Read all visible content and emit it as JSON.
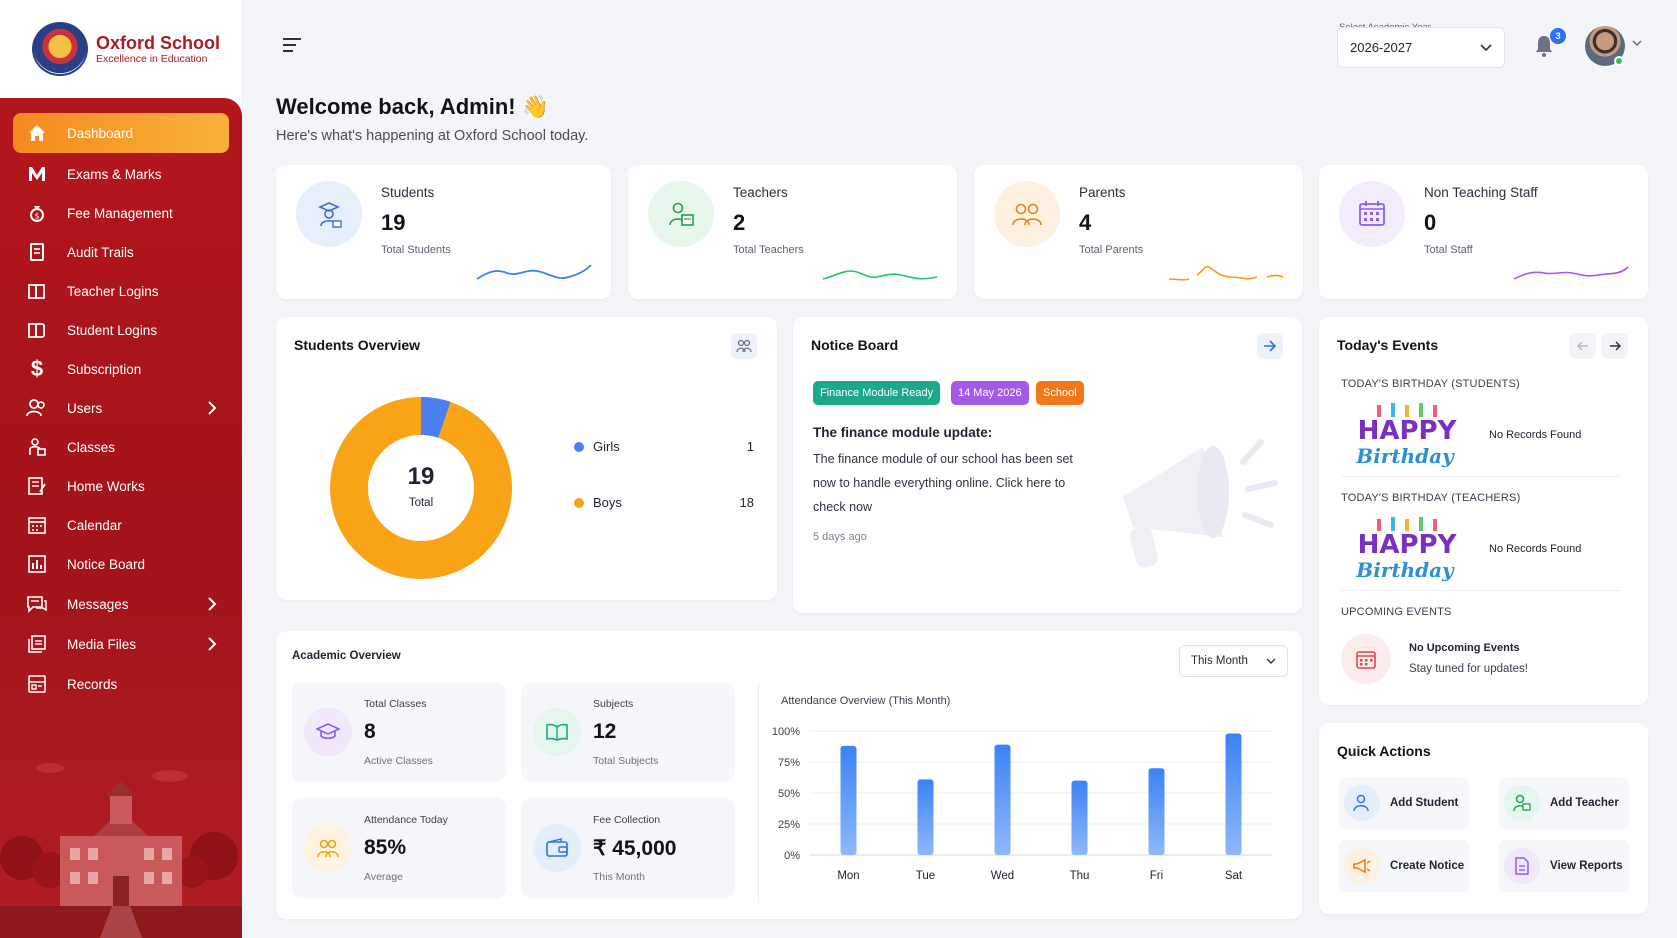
{
  "brand": {
    "name": "Oxford School",
    "tagline": "Excellence in Education"
  },
  "nav": {
    "items": [
      {
        "label": "Dashboard",
        "icon": "home-icon",
        "active": true
      },
      {
        "label": "Exams & Marks",
        "icon": "m-icon"
      },
      {
        "label": "Fee Management",
        "icon": "money-bag-icon"
      },
      {
        "label": "Audit Trails",
        "icon": "document-icon"
      },
      {
        "label": "Teacher Logins",
        "icon": "book-icon"
      },
      {
        "label": "Student Logins",
        "icon": "book-icon"
      },
      {
        "label": "Subscription",
        "icon": "dollar-icon"
      },
      {
        "label": "Users",
        "icon": "users-icon",
        "has_children": true
      },
      {
        "label": "Classes",
        "icon": "classes-icon"
      },
      {
        "label": "Home Works",
        "icon": "homework-icon"
      },
      {
        "label": "Calendar",
        "icon": "calendar-icon"
      },
      {
        "label": "Notice Board",
        "icon": "notice-icon"
      },
      {
        "label": "Messages",
        "icon": "chat-icon",
        "has_children": true
      },
      {
        "label": "Media Files",
        "icon": "media-icon",
        "has_children": true
      },
      {
        "label": "Records",
        "icon": "records-icon"
      }
    ]
  },
  "header": {
    "year_label": "Select Academic Year",
    "year_value": "2026-2027",
    "notification_count": "3"
  },
  "welcome": {
    "title": "Welcome back, Admin! 👋",
    "subtitle": "Here's what's happening at Oxford School today."
  },
  "stats": [
    {
      "title": "Students",
      "value": "19",
      "sub": "Total Students",
      "color": "#3b82f6"
    },
    {
      "title": "Teachers",
      "value": "2",
      "sub": "Total Teachers",
      "color": "#22c55e"
    },
    {
      "title": "Parents",
      "value": "4",
      "sub": "Total Parents",
      "color": "#f59e0b"
    },
    {
      "title": "Non Teaching Staff",
      "value": "0",
      "sub": "Total Staff",
      "color": "#a855f7"
    }
  ],
  "students_overview": {
    "title": "Students Overview",
    "total_value": "19",
    "total_label": "Total",
    "legend": [
      {
        "label": "Girls",
        "value": "1",
        "color": "#4c7ef3"
      },
      {
        "label": "Boys",
        "value": "18",
        "color": "#f8a416"
      }
    ]
  },
  "notice_board": {
    "title": "Notice Board",
    "tags": [
      {
        "label": "Finance Module Ready",
        "color": "#1ba98a"
      },
      {
        "label": "14 May 2026",
        "color": "#a35ae6"
      },
      {
        "label": "School",
        "color": "#f2761a"
      }
    ],
    "notice_title": "The finance module update:",
    "notice_body": "The finance module of our school has been set now to handle everything online. Click here to check now",
    "time": "5 days ago"
  },
  "events": {
    "title": "Today's Events",
    "birthday_students_label": "TODAY'S BIRTHDAY (STUDENTS)",
    "birthday_teachers_label": "TODAY'S BIRTHDAY (TEACHERS)",
    "no_records": "No Records Found",
    "happy": "HAPPY",
    "birthday": "Birthday",
    "upcoming_label": "UPCOMING EVENTS",
    "no_upcoming": "No Upcoming Events",
    "stay_tuned": "Stay tuned for updates!"
  },
  "academic": {
    "title": "Academic Overview",
    "period": "This Month",
    "tiles": [
      {
        "title": "Total Classes",
        "value": "8",
        "sub": "Active Classes"
      },
      {
        "title": "Subjects",
        "value": "12",
        "sub": "Total Subjects"
      },
      {
        "title": "Attendance Today",
        "value": "85%",
        "sub": "Average"
      },
      {
        "title": "Fee Collection",
        "value": "₹ 45,000",
        "sub": "This Month"
      }
    ],
    "attendance_title": "Attendance Overview (This Month)"
  },
  "quick_actions": {
    "title": "Quick Actions",
    "items": [
      {
        "label": "Add Student"
      },
      {
        "label": "Add Teacher"
      },
      {
        "label": "Create Notice"
      },
      {
        "label": "View Reports"
      }
    ]
  },
  "chart_data": {
    "type": "bar",
    "title": "Attendance Overview (This Month)",
    "categories": [
      "Mon",
      "Tue",
      "Wed",
      "Thu",
      "Fri",
      "Sat"
    ],
    "values": [
      88,
      61,
      89,
      60,
      70,
      98
    ],
    "ylim": [
      0,
      100
    ],
    "yticks": [
      "0%",
      "25%",
      "50%",
      "75%",
      "100%"
    ],
    "grid": true,
    "color": "#3b82f6"
  }
}
